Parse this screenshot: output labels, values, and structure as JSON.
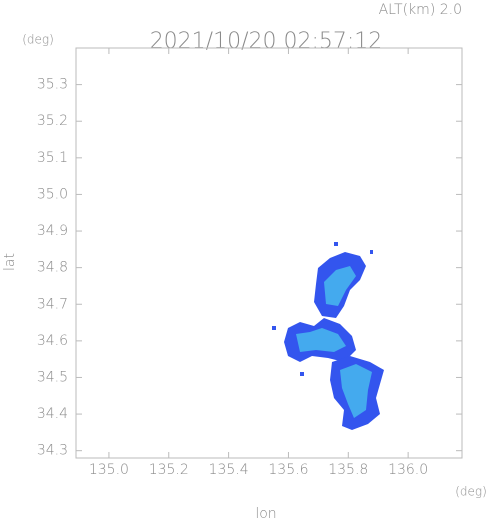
{
  "chart_data": {
    "type": "radar",
    "title": "2021/10/20 02:57:12",
    "subtitle": "ALT(km) 2.0",
    "x_label": "lon",
    "y_label": "lat",
    "x_unit": "(deg)",
    "y_unit": "(deg)",
    "xlim": [
      134.89,
      136.18
    ],
    "ylim": [
      34.28,
      35.4
    ],
    "xticks": [
      {
        "value": 135.0,
        "label": "135.0"
      },
      135.2,
      135.4,
      135.6,
      135.8,
      {
        "value": 136.0,
        "label": "136.0"
      }
    ],
    "yticks": [
      34.3,
      34.4,
      34.5,
      34.6,
      34.7,
      34.8,
      34.9,
      {
        "value": 35.0,
        "label": "35.0"
      },
      35.1,
      35.2,
      35.3
    ]
  }
}
